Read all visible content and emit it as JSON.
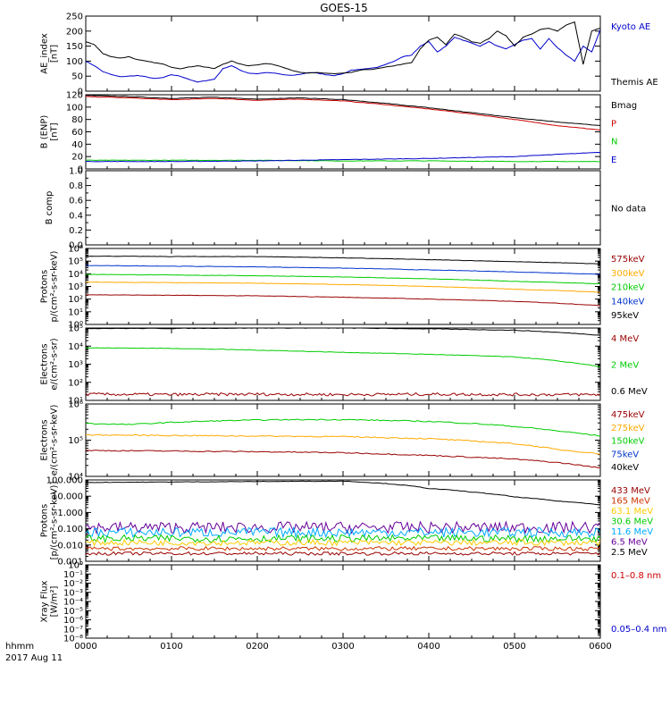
{
  "title": "GOES-15",
  "footer": {
    "hhmm_label": "hhmm",
    "date_label": "2017 Aug 11"
  },
  "x_ticks": [
    "0000",
    "0100",
    "0200",
    "0300",
    "0400",
    "0500",
    "0600"
  ],
  "chart_data": [
    {
      "type": "line",
      "id": "ae",
      "ylabel_lines": [
        "AE_index",
        "[nT]"
      ],
      "scale": "linear",
      "ylim": [
        0,
        250
      ],
      "y_ticks": [
        0,
        50,
        100,
        150,
        200,
        250
      ],
      "y_tick_labels": [
        "0",
        "50",
        "100",
        "150",
        "200",
        "250"
      ],
      "legend": [
        {
          "text": "Kyoto AE",
          "color": "#0000cc"
        },
        {
          "text": "Themis AE",
          "color": "#000000"
        }
      ],
      "series": [
        {
          "name": "Kyoto AE",
          "color": "#0000cc",
          "x": [
            0.0,
            0.1,
            0.2,
            0.3,
            0.4,
            0.5,
            0.6,
            0.7,
            0.8,
            0.9,
            1.0,
            1.1,
            1.2,
            1.3,
            1.4,
            1.5,
            1.6,
            1.7,
            1.8,
            1.9,
            2.0,
            2.1,
            2.2,
            2.3,
            2.4,
            2.5,
            2.6,
            2.7,
            2.8,
            2.9,
            3.0,
            3.1,
            3.2,
            3.3,
            3.4,
            3.5,
            3.6,
            3.7,
            3.8,
            3.9,
            4.0,
            4.1,
            4.2,
            4.3,
            4.4,
            4.5,
            4.6,
            4.7,
            4.8,
            4.9,
            5.0,
            5.1,
            5.2,
            5.3,
            5.4,
            5.5,
            5.6,
            5.7,
            5.8,
            5.9,
            6.0
          ],
          "y": [
            100,
            85,
            65,
            55,
            48,
            50,
            52,
            48,
            42,
            45,
            55,
            50,
            40,
            30,
            35,
            40,
            75,
            85,
            70,
            60,
            58,
            62,
            60,
            55,
            52,
            56,
            62,
            60,
            55,
            52,
            58,
            70,
            72,
            75,
            80,
            90,
            100,
            115,
            120,
            150,
            165,
            130,
            150,
            180,
            170,
            160,
            150,
            165,
            150,
            140,
            155,
            170,
            175,
            140,
            175,
            145,
            120,
            100,
            150,
            130,
            205
          ]
        },
        {
          "name": "Themis AE",
          "color": "#000000",
          "x": [
            0.0,
            0.1,
            0.2,
            0.3,
            0.4,
            0.5,
            0.6,
            0.7,
            0.8,
            0.9,
            1.0,
            1.1,
            1.2,
            1.3,
            1.4,
            1.5,
            1.6,
            1.7,
            1.8,
            1.9,
            2.0,
            2.1,
            2.2,
            2.3,
            2.4,
            2.5,
            2.6,
            2.7,
            2.8,
            2.9,
            3.0,
            3.1,
            3.2,
            3.3,
            3.4,
            3.5,
            3.6,
            3.7,
            3.8,
            3.9,
            4.0,
            4.1,
            4.2,
            4.3,
            4.4,
            4.5,
            4.6,
            4.7,
            4.8,
            4.9,
            5.0,
            5.1,
            5.2,
            5.3,
            5.4,
            5.5,
            5.6,
            5.7,
            5.8,
            5.9,
            6.0
          ],
          "y": [
            165,
            155,
            125,
            115,
            110,
            115,
            105,
            100,
            95,
            90,
            80,
            75,
            80,
            85,
            80,
            75,
            90,
            100,
            90,
            85,
            88,
            92,
            88,
            80,
            70,
            62,
            60,
            62,
            60,
            58,
            60,
            62,
            70,
            72,
            75,
            80,
            85,
            90,
            95,
            140,
            170,
            180,
            155,
            190,
            180,
            165,
            160,
            175,
            200,
            185,
            150,
            180,
            190,
            205,
            210,
            200,
            220,
            230,
            90,
            200,
            210
          ]
        }
      ]
    },
    {
      "type": "line",
      "id": "bfield",
      "ylabel_lines": [
        "B (ENP)",
        "[nT]"
      ],
      "scale": "linear",
      "ylim": [
        0,
        120
      ],
      "y_ticks": [
        0,
        20,
        40,
        60,
        80,
        100,
        120
      ],
      "y_tick_labels": [
        "0",
        "20",
        "40",
        "60",
        "80",
        "100",
        "120"
      ],
      "legend": [
        {
          "text": "Bmag",
          "color": "#000000"
        },
        {
          "text": "P",
          "color": "#cc0000"
        },
        {
          "text": "N",
          "color": "#00cc00"
        },
        {
          "text": "E",
          "color": "#0000cc"
        }
      ],
      "series": [
        {
          "name": "Bmag",
          "color": "#000000",
          "x": [
            0,
            0.5,
            1.0,
            1.5,
            2.0,
            2.5,
            3.0,
            3.5,
            4.0,
            4.5,
            5.0,
            5.5,
            6.0
          ],
          "y": [
            119,
            117,
            114,
            116,
            113,
            115,
            112,
            106,
            99,
            91,
            83,
            76,
            70
          ]
        },
        {
          "name": "P",
          "color": "#cc0000",
          "x": [
            0,
            0.5,
            1.0,
            1.5,
            2.0,
            2.5,
            3.0,
            3.5,
            4.0,
            4.5,
            5.0,
            5.5,
            6.0
          ],
          "y": [
            117,
            115,
            112,
            114,
            111,
            113,
            110,
            104,
            97,
            89,
            80,
            70,
            63
          ]
        },
        {
          "name": "N",
          "color": "#00cc00",
          "x": [
            0,
            1,
            2,
            3,
            4,
            5,
            6
          ],
          "y": [
            14,
            14,
            14,
            13,
            13,
            12,
            12
          ]
        },
        {
          "name": "E",
          "color": "#0000cc",
          "x": [
            0,
            1,
            2,
            3,
            4,
            5,
            6
          ],
          "y": [
            12,
            12,
            13,
            15,
            17,
            20,
            27
          ]
        }
      ]
    },
    {
      "type": "line",
      "id": "bcomp",
      "ylabel_lines": [
        "B comp"
      ],
      "scale": "linear",
      "ylim": [
        0,
        1.0
      ],
      "y_ticks": [
        0,
        0.2,
        0.4,
        0.6,
        0.8,
        1.0
      ],
      "y_tick_labels": [
        "0.0",
        "0.2",
        "0.4",
        "0.6",
        "0.8",
        "1.0"
      ],
      "y_minor_ticks": [
        0.1,
        0.3,
        0.5,
        0.7,
        0.9
      ],
      "legend": [
        {
          "text": "No data",
          "color": "#000000"
        }
      ],
      "series": []
    },
    {
      "type": "line",
      "id": "protons_mag",
      "ylabel_lines": [
        "Protons",
        "p/(cm²-s-sr-keV)"
      ],
      "scale": "log",
      "ylim": [
        1,
        1000000
      ],
      "y_ticks": [
        1,
        10,
        100,
        1000,
        10000,
        100000,
        1000000
      ],
      "y_tick_labels": [
        "10⁰",
        "10¹",
        "10²",
        "10³",
        "10⁴",
        "10⁵",
        "10⁶"
      ],
      "legend": [
        {
          "text": "575keV",
          "color": "#990000"
        },
        {
          "text": "300keV",
          "color": "#ffaa00"
        },
        {
          "text": "210keV",
          "color": "#00cc00"
        },
        {
          "text": "140keV",
          "color": "#0033cc"
        },
        {
          "text": "95keV",
          "color": "#000000"
        }
      ],
      "series": [
        {
          "name": "95keV",
          "color": "#000000",
          "x": [
            0,
            1,
            2,
            3,
            4,
            5,
            6
          ],
          "y": [
            250000,
            230000,
            230000,
            180000,
            130000,
            90000,
            60000
          ]
        },
        {
          "name": "140keV",
          "color": "#0033cc",
          "x": [
            0,
            1,
            2,
            3,
            4,
            5,
            6
          ],
          "y": [
            45000,
            40000,
            35000,
            28000,
            20000,
            14000,
            9000
          ]
        },
        {
          "name": "210keV",
          "color": "#00cc00",
          "x": [
            0,
            1,
            2,
            3,
            4,
            5,
            6
          ],
          "y": [
            9000,
            8000,
            7000,
            5500,
            4000,
            2500,
            1600
          ]
        },
        {
          "name": "300keV",
          "color": "#ffaa00",
          "x": [
            0,
            1,
            2,
            3,
            4,
            5,
            6
          ],
          "y": [
            2200,
            2000,
            1800,
            1400,
            1000,
            600,
            350
          ]
        },
        {
          "name": "575keV",
          "color": "#990000",
          "x": [
            0,
            1,
            2,
            3,
            4,
            5,
            6
          ],
          "y": [
            220,
            200,
            180,
            140,
            100,
            65,
            30
          ]
        }
      ]
    },
    {
      "type": "line",
      "id": "electrons_hi",
      "ylabel_lines": [
        "Electrons",
        "e/(cm²-s-sr)"
      ],
      "scale": "log",
      "ylim": [
        10,
        100000
      ],
      "y_ticks": [
        10,
        100,
        1000,
        10000,
        100000
      ],
      "y_tick_labels": [
        "10¹",
        "10²",
        "10³",
        "10⁴",
        "10⁵"
      ],
      "legend": [
        {
          "text": "4 MeV",
          "color": "#990000"
        },
        {
          "text": "2 MeV",
          "color": "#00cc00"
        },
        {
          "text": "0.6 MeV",
          "color": "#000000"
        }
      ],
      "series": [
        {
          "name": "0.6 MeV",
          "color": "#000000",
          "x": [
            0,
            1,
            2,
            3,
            4,
            5,
            6
          ],
          "y": [
            95000,
            95000,
            100000,
            100000,
            90000,
            75000,
            40000
          ]
        },
        {
          "name": "2 MeV",
          "color": "#00cc00",
          "x": [
            0,
            1,
            2,
            3,
            4,
            5,
            5.5,
            6
          ],
          "y": [
            8000,
            7500,
            6000,
            4500,
            3500,
            2500,
            1500,
            700
          ]
        },
        {
          "name": "4 MeV",
          "color": "#990000",
          "x": [
            0,
            1,
            2,
            3,
            4,
            5,
            6
          ],
          "y": [
            22,
            21,
            22,
            21,
            22,
            21,
            21
          ],
          "noise": 0.08
        }
      ]
    },
    {
      "type": "line",
      "id": "electrons_mag",
      "ylabel_lines": [
        "Electrons",
        "e/(cm²-s-sr-keV)"
      ],
      "scale": "log",
      "ylim": [
        10000,
        1000000
      ],
      "y_ticks": [
        10000,
        100000,
        1000000
      ],
      "y_tick_labels": [
        "10⁴",
        "10⁵",
        "10⁶"
      ],
      "legend": [
        {
          "text": "475keV",
          "color": "#990000"
        },
        {
          "text": "275keV",
          "color": "#ffaa00"
        },
        {
          "text": "150keV",
          "color": "#00cc00"
        },
        {
          "text": "75keV",
          "color": "#0033cc"
        },
        {
          "text": "40keV",
          "color": "#000000"
        }
      ],
      "series": [
        {
          "name": "150keV",
          "color": "#00cc00",
          "x": [
            0,
            0.5,
            1,
            1.5,
            2,
            2.5,
            3,
            3.5,
            4,
            4.5,
            5,
            5.5,
            6
          ],
          "y": [
            290000,
            270000,
            310000,
            340000,
            360000,
            370000,
            370000,
            350000,
            330000,
            290000,
            240000,
            180000,
            130000
          ]
        },
        {
          "name": "275keV",
          "color": "#ffaa00",
          "x": [
            0,
            1,
            2,
            3,
            4,
            5,
            5.5,
            6
          ],
          "y": [
            140000,
            135000,
            130000,
            125000,
            110000,
            80000,
            55000,
            42000
          ]
        },
        {
          "name": "475keV",
          "color": "#990000",
          "x": [
            0,
            1,
            2,
            3,
            4,
            5,
            5.5,
            6
          ],
          "y": [
            52000,
            50000,
            48000,
            45000,
            38000,
            30000,
            24000,
            17000
          ]
        }
      ]
    },
    {
      "type": "line",
      "id": "protons_hi",
      "ylabel_lines": [
        "Protons",
        "[p/(cm²-s-sr-keV)]"
      ],
      "scale": "log",
      "ylim": [
        0.001,
        100
      ],
      "y_ticks": [
        0.001,
        0.01,
        0.1,
        1,
        10,
        100
      ],
      "y_tick_labels": [
        "0.001",
        "0.010",
        "0.100",
        "1.000",
        "10.000",
        "100.000"
      ],
      "legend": [
        {
          "text": "433 MeV",
          "color": "#990000"
        },
        {
          "text": "165 MeV",
          "color": "#cc3300"
        },
        {
          "text": "63.1 MeV",
          "color": "#ffcc00"
        },
        {
          "text": "30.6 MeV",
          "color": "#00cc00"
        },
        {
          "text": "11.6 MeV",
          "color": "#00aaff"
        },
        {
          "text": "6.5 MeV",
          "color": "#660099"
        },
        {
          "text": "2.5 MeV",
          "color": "#000000"
        }
      ],
      "series": [
        {
          "name": "2.5 MeV",
          "color": "#000000",
          "x": [
            0,
            1,
            2,
            3,
            3.5,
            4,
            4.5,
            5,
            5.5,
            6
          ],
          "y": [
            70,
            75,
            80,
            85,
            60,
            30,
            18,
            9,
            5,
            3
          ]
        },
        {
          "name": "6.5 MeV",
          "color": "#660099",
          "x": [
            0,
            6
          ],
          "y": [
            0.12,
            0.12
          ],
          "noise": 0.35
        },
        {
          "name": "11.6 MeV",
          "color": "#00aaff",
          "x": [
            0,
            6
          ],
          "y": [
            0.06,
            0.06
          ],
          "noise": 0.3
        },
        {
          "name": "30.6 MeV",
          "color": "#00cc00",
          "x": [
            0,
            6
          ],
          "y": [
            0.025,
            0.025
          ],
          "noise": 0.22
        },
        {
          "name": "63.1 MeV",
          "color": "#ffcc00",
          "x": [
            0,
            6
          ],
          "y": [
            0.014,
            0.014
          ],
          "noise": 0.18
        },
        {
          "name": "165 MeV",
          "color": "#cc3300",
          "x": [
            0,
            6
          ],
          "y": [
            0.006,
            0.006
          ],
          "noise": 0.12
        },
        {
          "name": "433 MeV",
          "color": "#990000",
          "x": [
            0,
            6
          ],
          "y": [
            0.003,
            0.003
          ],
          "noise": 0.1
        }
      ]
    },
    {
      "type": "line",
      "id": "xray",
      "ylabel_lines": [
        "Xray Flux",
        "[W/m²]"
      ],
      "scale": "log",
      "ylim": [
        1e-08,
        1
      ],
      "y_ticks": [
        1e-08,
        1e-07,
        1e-06,
        1e-05,
        0.0001,
        0.001,
        0.01,
        0.1,
        1
      ],
      "y_tick_labels": [
        "10⁻⁸",
        "10⁻⁷",
        "10⁻⁶",
        "10⁻⁵",
        "10⁻⁴",
        "10⁻³",
        "10⁻²",
        "10⁻¹",
        "10⁰"
      ],
      "legend": [
        {
          "text": "0.1–0.8 nm",
          "color": "#cc0000"
        },
        {
          "text": "0.05–0.4 nm",
          "color": "#0000cc"
        }
      ],
      "series": []
    }
  ]
}
